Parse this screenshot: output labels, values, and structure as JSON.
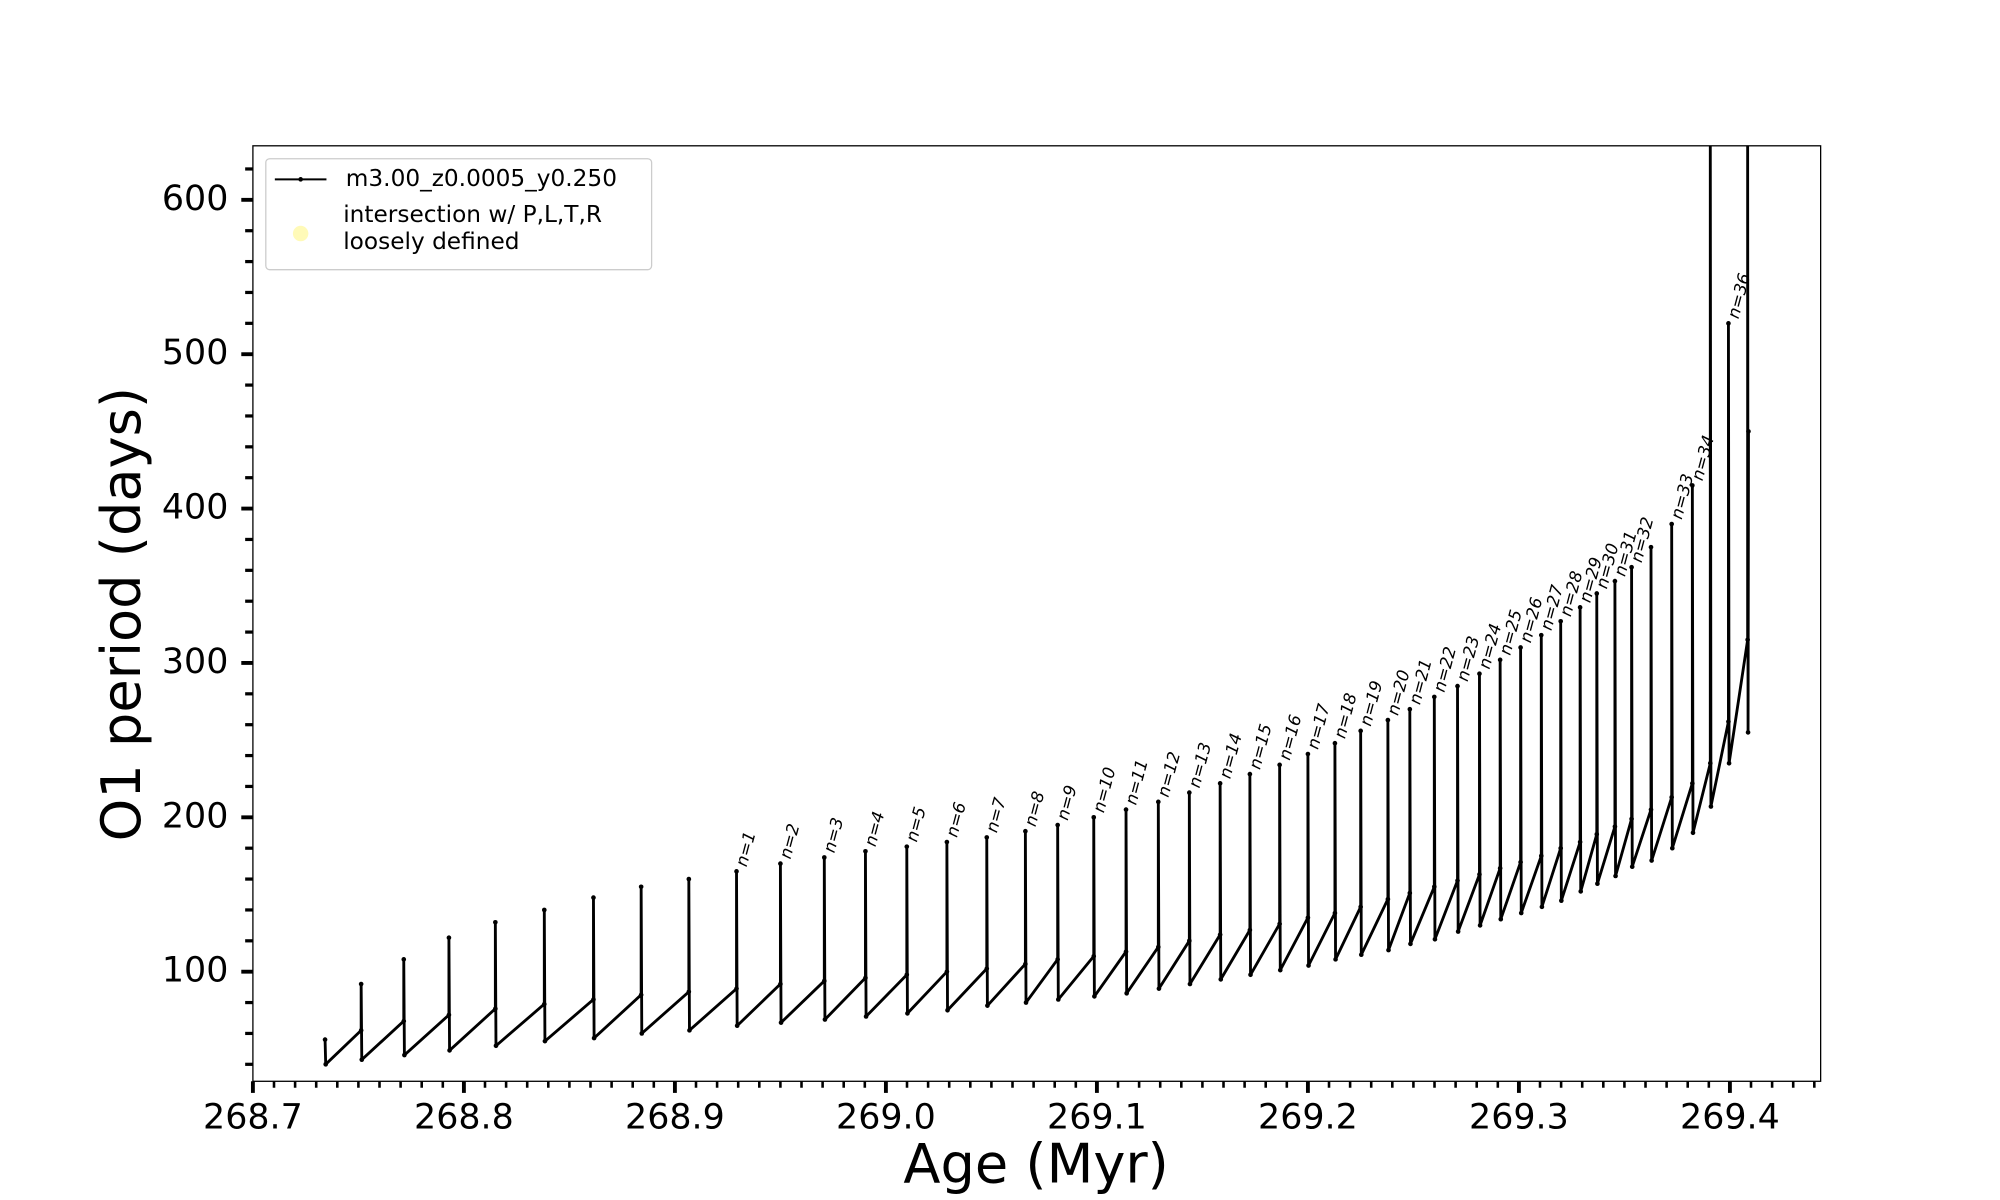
{
  "chart_data": {
    "type": "line",
    "xlabel": "Age (Myr)",
    "ylabel": "O1 period (days)",
    "xlim": [
      268.7,
      269.443
    ],
    "ylim": [
      29,
      635
    ],
    "xticks": [
      268.7,
      268.8,
      268.9,
      {
        "value": 269,
        "label": "269.0"
      },
      269.1,
      269.2,
      269.3,
      269.4
    ],
    "yticks": [
      100,
      200,
      300,
      400,
      500,
      600
    ],
    "xminorticks": [
      268.71,
      268.72,
      268.73,
      268.74,
      268.75,
      268.76,
      268.77,
      268.78,
      268.79,
      268.81,
      268.82,
      268.83,
      268.84,
      268.85,
      268.86,
      268.87,
      268.88,
      268.89,
      268.91,
      268.92,
      268.93,
      268.94,
      268.95,
      268.96,
      268.97,
      268.98,
      268.99,
      269.01,
      269.02,
      269.03,
      269.04,
      269.05,
      269.06,
      269.07,
      269.08,
      269.09,
      269.11,
      269.12,
      269.13,
      269.14,
      269.15,
      269.16,
      269.17,
      269.18,
      269.19,
      269.21,
      269.22,
      269.23,
      269.24,
      269.25,
      269.26,
      269.27,
      269.28,
      269.29,
      269.31,
      269.32,
      269.33,
      269.34,
      269.35,
      269.36,
      269.37,
      269.38,
      269.39,
      269.41,
      269.42,
      269.43,
      269.44
    ],
    "yminorticks": [
      40,
      60,
      80,
      120,
      140,
      160,
      180,
      220,
      240,
      260,
      280,
      320,
      340,
      360,
      380,
      420,
      440,
      460,
      480,
      520,
      540,
      560,
      580,
      620
    ],
    "legend": "upper left",
    "series": [
      {
        "name": "m3.00_z0.0005_y0.250",
        "color": "#000000",
        "x": [
          268.7342,
          268.7345,
          268.7513,
          268.7513,
          268.7516,
          268.7715,
          268.7715,
          268.7718,
          268.7929,
          268.7929,
          268.7932,
          268.8149,
          268.8149,
          268.8152,
          268.8381,
          268.8381,
          268.8384,
          268.8614,
          268.8614,
          268.8617,
          268.884,
          268.884,
          268.8843,
          268.9066,
          268.9066,
          268.9069,
          268.9292,
          268.9292,
          268.9295,
          268.95,
          268.95,
          268.9503,
          268.9708,
          268.9708,
          268.9711,
          268.9903,
          268.9903,
          268.9906,
          269.0099,
          269.0099,
          269.0102,
          269.0289,
          269.0289,
          269.0292,
          269.0478,
          269.0478,
          269.0481,
          269.0661,
          269.0661,
          269.0664,
          269.0814,
          269.0814,
          269.0817,
          269.0985,
          269.0985,
          269.0988,
          269.1138,
          269.1138,
          269.1141,
          269.1291,
          269.1291,
          269.1294,
          269.1438,
          269.1438,
          269.1441,
          269.1584,
          269.1584,
          269.1587,
          269.1725,
          269.1725,
          269.1728,
          269.1866,
          269.1866,
          269.1869,
          269.2,
          269.2,
          269.2003,
          269.2128,
          269.2128,
          269.2131,
          269.225,
          269.225,
          269.2253,
          269.2379,
          269.2379,
          269.2382,
          269.2483,
          269.2483,
          269.2486,
          269.2599,
          269.2599,
          269.2602,
          269.2709,
          269.2709,
          269.2712,
          269.2813,
          269.2813,
          269.2816,
          269.2911,
          269.2911,
          269.2914,
          269.3008,
          269.3008,
          269.3011,
          269.3106,
          269.3106,
          269.3109,
          269.3198,
          269.3198,
          269.3201,
          269.329,
          269.329,
          269.3293,
          269.3369,
          269.3369,
          269.3372,
          269.3455,
          269.3455,
          269.3458,
          269.3534,
          269.3534,
          269.3537,
          269.3626,
          269.3626,
          269.3629,
          269.3724,
          269.3724,
          269.3727,
          269.3822,
          269.3822,
          269.3825,
          269.3907,
          269.3907,
          269.391,
          269.3993,
          269.3993,
          269.3996,
          269.4084,
          269.4084,
          269.4086,
          269.4088
        ],
        "values": [
          56,
          40,
          62,
          92,
          43,
          68,
          108,
          46,
          72,
          122,
          49,
          76,
          132,
          52,
          79,
          140,
          55,
          82,
          148,
          57,
          85,
          155,
          60,
          87,
          160,
          62,
          89,
          165,
          65,
          92,
          170,
          67,
          94,
          174,
          69,
          96,
          178,
          71,
          98,
          181,
          73,
          100,
          184,
          75,
          102,
          187,
          78,
          105,
          191,
          80,
          108,
          195,
          82,
          110,
          200,
          84,
          113,
          205,
          86,
          116,
          210,
          89,
          120,
          216,
          92,
          124,
          222,
          95,
          127,
          228,
          98,
          131,
          234,
          101,
          135,
          241,
          104,
          138,
          248,
          108,
          142,
          256,
          111,
          147,
          263,
          114,
          151,
          270,
          118,
          155,
          278,
          121,
          159,
          285,
          126,
          163,
          293,
          130,
          167,
          302,
          134,
          171,
          310,
          138,
          175,
          318,
          142,
          180,
          327,
          146,
          184,
          336,
          152,
          189,
          345,
          157,
          194,
          353,
          162,
          199,
          362,
          168,
          205,
          375,
          172,
          213,
          390,
          180,
          222,
          415,
          190,
          235,
          640,
          207,
          262,
          520,
          235,
          315,
          640,
          255,
          450
        ]
      },
      {
        "name": "intersection w/ P,L,T,R loosely defined",
        "color": "#fff9b0",
        "x": [],
        "values": []
      }
    ],
    "annotations": [
      {
        "text": "n=1",
        "x": 268.9292,
        "y": 165
      },
      {
        "text": "n=2",
        "x": 268.95,
        "y": 170
      },
      {
        "text": "n=3",
        "x": 268.9708,
        "y": 174
      },
      {
        "text": "n=4",
        "x": 268.9903,
        "y": 178
      },
      {
        "text": "n=5",
        "x": 269.0099,
        "y": 181
      },
      {
        "text": "n=6",
        "x": 269.0289,
        "y": 184
      },
      {
        "text": "n=7",
        "x": 269.0478,
        "y": 187
      },
      {
        "text": "n=8",
        "x": 269.0661,
        "y": 191
      },
      {
        "text": "n=9",
        "x": 269.0814,
        "y": 195
      },
      {
        "text": "n=10",
        "x": 269.0985,
        "y": 200
      },
      {
        "text": "n=11",
        "x": 269.1138,
        "y": 205
      },
      {
        "text": "n=12",
        "x": 269.1291,
        "y": 210
      },
      {
        "text": "n=13",
        "x": 269.1438,
        "y": 216
      },
      {
        "text": "n=14",
        "x": 269.1584,
        "y": 222
      },
      {
        "text": "n=15",
        "x": 269.1725,
        "y": 228
      },
      {
        "text": "n=16",
        "x": 269.1866,
        "y": 234
      },
      {
        "text": "n=17",
        "x": 269.2,
        "y": 241
      },
      {
        "text": "n=18",
        "x": 269.2128,
        "y": 248
      },
      {
        "text": "n=19",
        "x": 269.225,
        "y": 256
      },
      {
        "text": "n=20",
        "x": 269.2379,
        "y": 263
      },
      {
        "text": "n=21",
        "x": 269.2483,
        "y": 270
      },
      {
        "text": "n=22",
        "x": 269.2599,
        "y": 278
      },
      {
        "text": "n=23",
        "x": 269.2709,
        "y": 285
      },
      {
        "text": "n=24",
        "x": 269.2813,
        "y": 293
      },
      {
        "text": "n=25",
        "x": 269.2911,
        "y": 302
      },
      {
        "text": "n=26",
        "x": 269.3008,
        "y": 310
      },
      {
        "text": "n=27",
        "x": 269.3106,
        "y": 318
      },
      {
        "text": "n=28",
        "x": 269.3198,
        "y": 327
      },
      {
        "text": "n=29",
        "x": 269.329,
        "y": 336
      },
      {
        "text": "n=30",
        "x": 269.3369,
        "y": 345
      },
      {
        "text": "n=31",
        "x": 269.3455,
        "y": 353
      },
      {
        "text": "n=32",
        "x": 269.3534,
        "y": 362
      },
      {
        "text": "n=33",
        "x": 269.3724,
        "y": 390
      },
      {
        "text": "n=34",
        "x": 269.3822,
        "y": 415
      },
      {
        "text": "n=36",
        "x": 269.3993,
        "y": 520
      }
    ]
  }
}
